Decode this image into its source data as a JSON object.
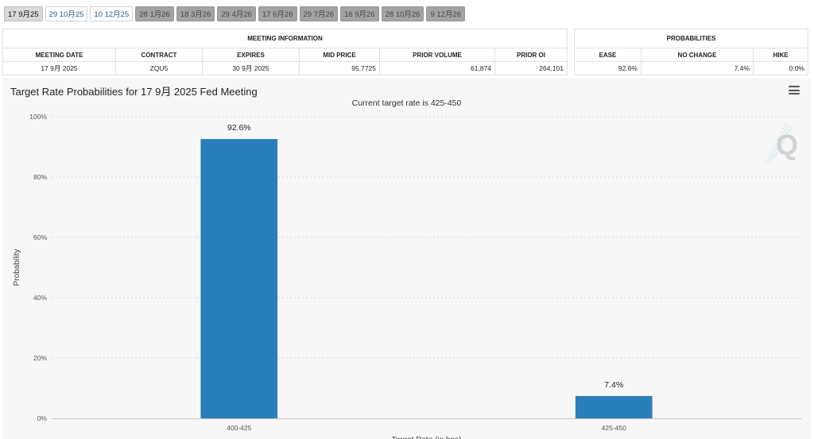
{
  "tabs": [
    {
      "label": "17 9月25",
      "state": "selected"
    },
    {
      "label": "29 10月25",
      "state": "future"
    },
    {
      "label": "10 12月25",
      "state": "future"
    },
    {
      "label": "28 1月26",
      "state": "past"
    },
    {
      "label": "18 3月26",
      "state": "past"
    },
    {
      "label": "29 4月26",
      "state": "past"
    },
    {
      "label": "17 6月26",
      "state": "past"
    },
    {
      "label": "29 7月26",
      "state": "past"
    },
    {
      "label": "16 9月26",
      "state": "past"
    },
    {
      "label": "28 10月26",
      "state": "past"
    },
    {
      "label": "9 12月26",
      "state": "past"
    }
  ],
  "meeting_info": {
    "group_title": "MEETING INFORMATION",
    "headers": {
      "meeting_date": "MEETING DATE",
      "contract": "CONTRACT",
      "expires": "EXPIRES",
      "mid_price": "MID PRICE",
      "prior_volume": "PRIOR VOLUME",
      "prior_oi": "PRIOR OI"
    },
    "row": {
      "meeting_date": "17 9月 2025",
      "contract": "ZQU5",
      "expires": "30 9月 2025",
      "mid_price": "95.7725",
      "prior_volume": "61,874",
      "prior_oi": "264,101"
    }
  },
  "probabilities": {
    "group_title": "PROBABILITIES",
    "headers": {
      "ease": "EASE",
      "no_change": "NO CHANGE",
      "hike": "HIKE"
    },
    "row": {
      "ease": "92.6%",
      "no_change": "7.4%",
      "hike": "0.0%"
    }
  },
  "chart": {
    "menu_icon": "hamburger-menu-icon",
    "watermark_icon": "q-logo-icon"
  },
  "chart_data": {
    "type": "bar",
    "title": "Target Rate Probabilities for 17 9月 2025 Fed Meeting",
    "subtitle": "Current target rate is 425-450",
    "categories": [
      "400-425",
      "425-450"
    ],
    "values": [
      92.6,
      7.4
    ],
    "data_labels": [
      "92.6%",
      "7.4%"
    ],
    "ylabel": "Probability",
    "xlabel": "Target Rate (in bps)",
    "ylim": [
      0,
      100
    ],
    "yticks": [
      "0%",
      "20%",
      "40%",
      "60%",
      "80%",
      "100%"
    ],
    "grid": true,
    "bar_color": "#2a7fba"
  }
}
